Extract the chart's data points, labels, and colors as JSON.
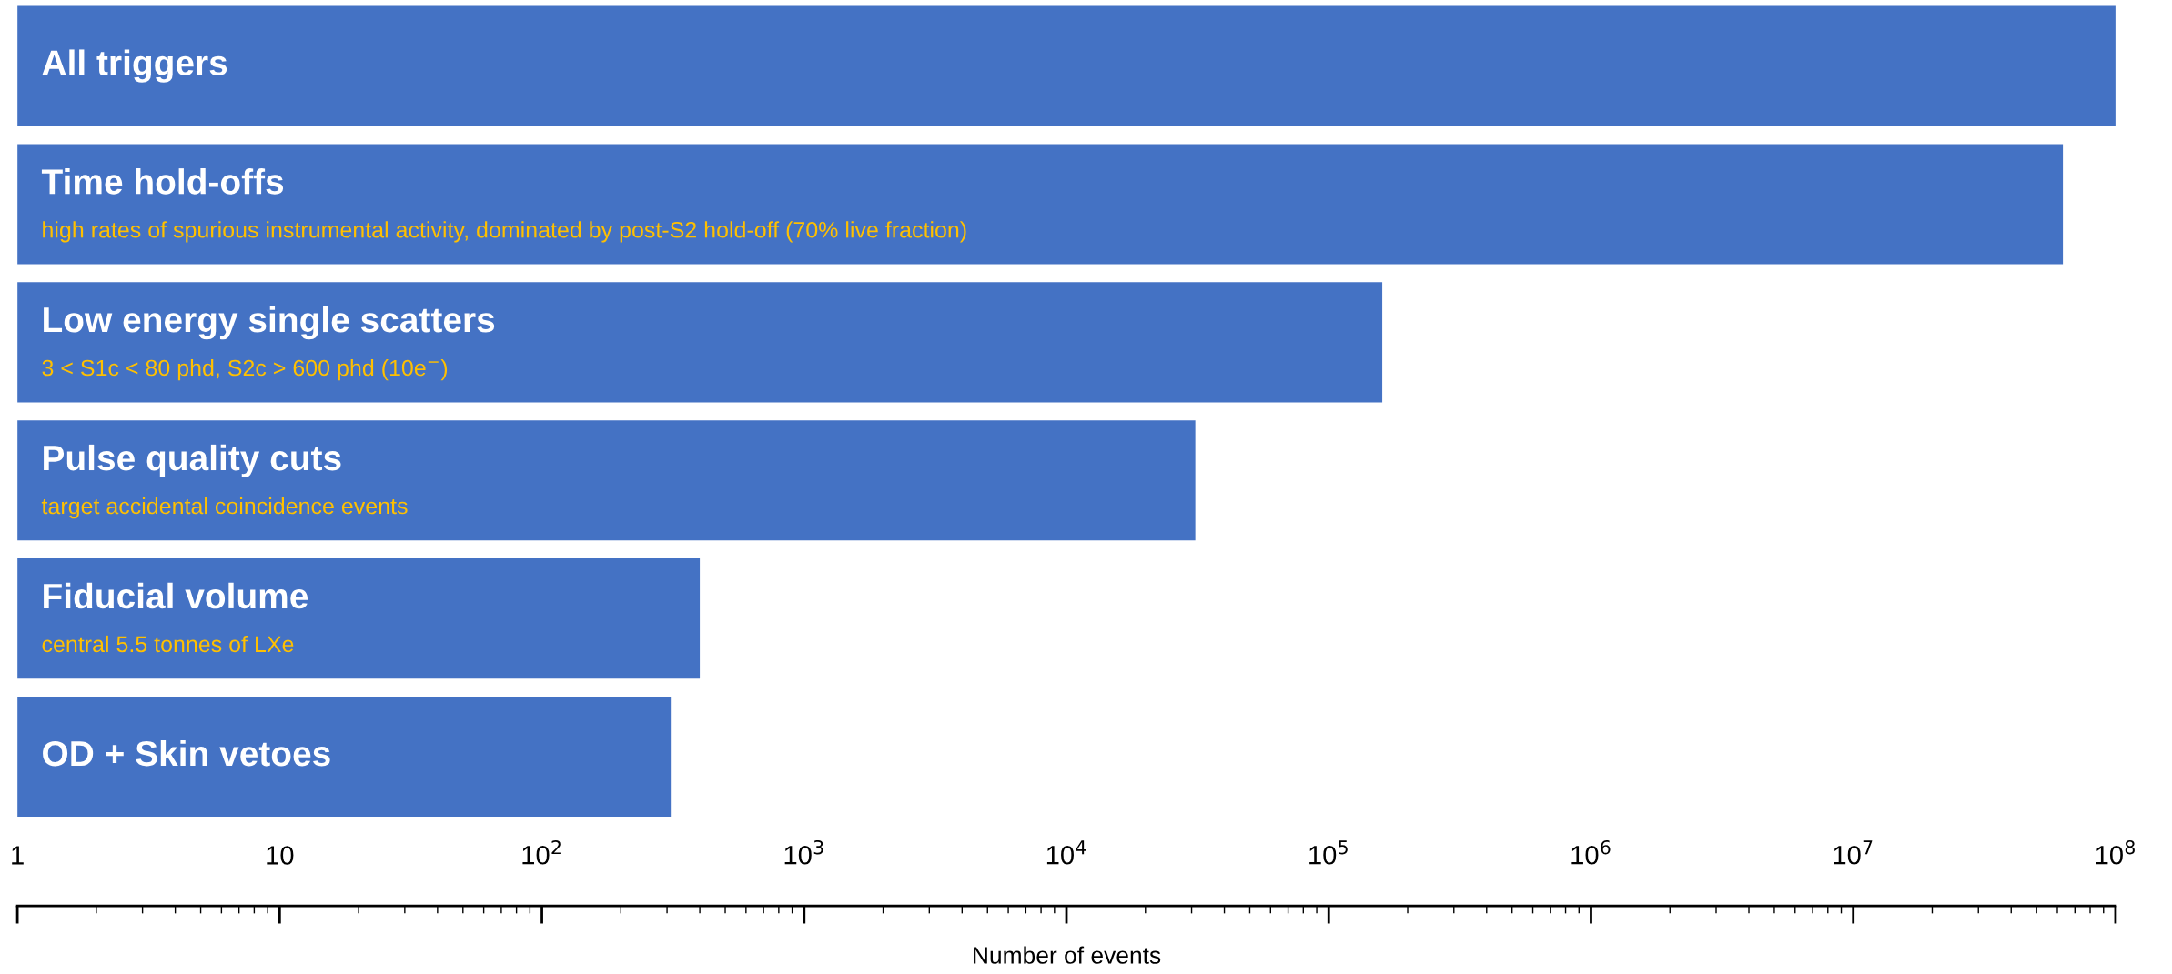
{
  "chart_data": {
    "type": "bar",
    "orientation": "horizontal",
    "log": "x",
    "xlabel": "Number of events",
    "categories": [
      "All triggers",
      "Time hold-offs",
      "Low energy single scatters",
      "Pulse quality cuts",
      "Fiducial volume",
      "OD + Skin vetoes"
    ],
    "values": [
      100000000,
      63000000,
      160000,
      31000,
      400,
      310
    ],
    "color": "#4472c4",
    "xlim": [
      1,
      100000000
    ],
    "xticks": [
      1,
      10,
      {
        "value": 100,
        "label": "10$^{2}$"
      },
      {
        "value": 1000,
        "label": "10$^{3}$"
      },
      {
        "value": 10000,
        "label": "10$^{4}$"
      },
      {
        "value": 100000,
        "label": "10$^{5}$"
      },
      {
        "value": 1000000,
        "label": "10$^{6}$"
      },
      {
        "value": 10000000,
        "label": "10$^{7}$"
      },
      {
        "value": 100000000,
        "label": "10$^{8}$"
      }
    ],
    "annotations": [
      null,
      "high rates of spurious instrumental activity, dominated by post-S2 hold-off (70% live fraction)",
      "3 < S1c < 80 phd, S2c > 600 phd (10e$^{−}$)",
      "target accidental coincidence events",
      "central 5.5 tonnes of LXe",
      null
    ],
    "grid": false,
    "legend": false
  }
}
